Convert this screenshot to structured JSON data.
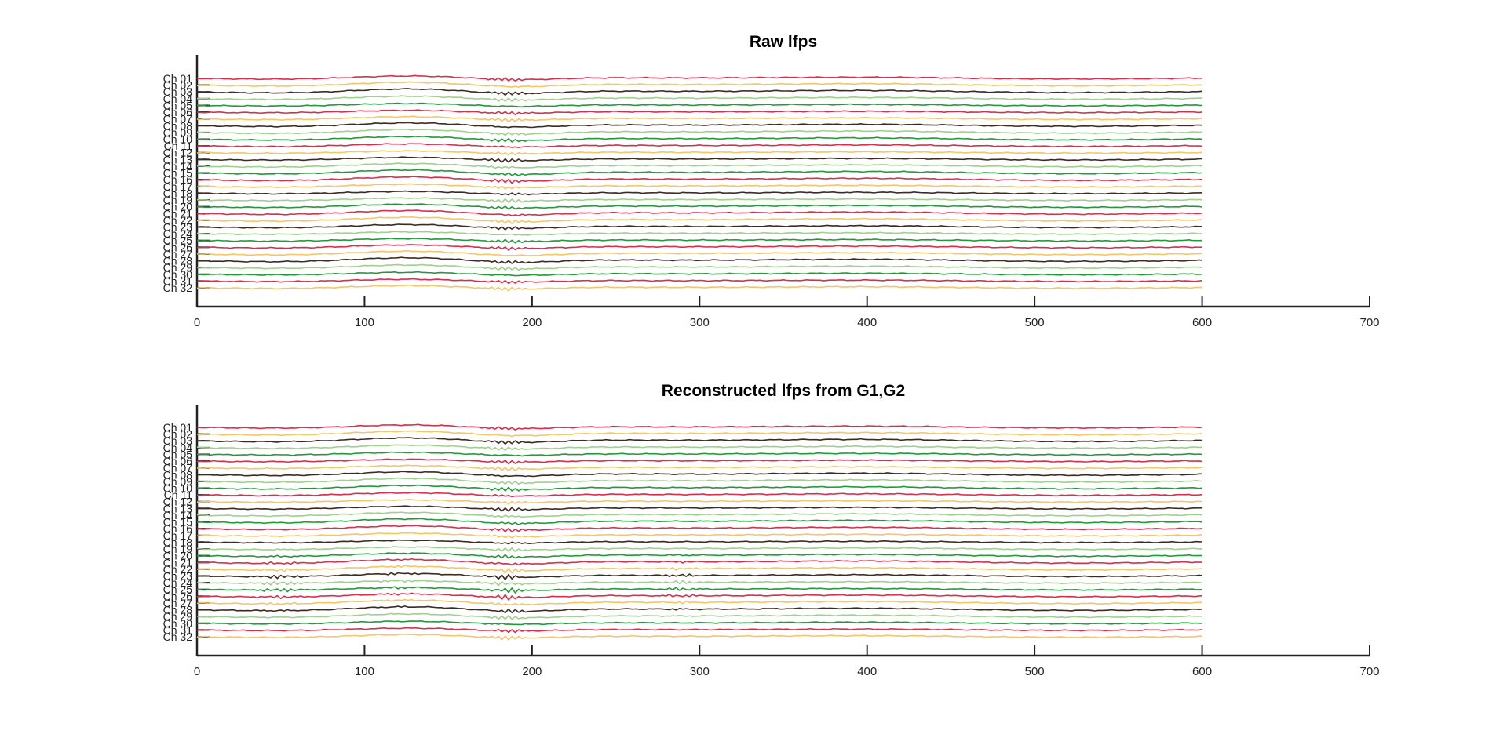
{
  "chart_data": [
    {
      "type": "line",
      "title": "Raw lfps",
      "xlabel": "",
      "ylabel": "",
      "xlim": [
        0,
        700
      ],
      "x_ticks": [
        "0",
        "100",
        "200",
        "300",
        "400",
        "500",
        "600",
        "700"
      ],
      "x_range_of_data": [
        0,
        600
      ],
      "grid": false,
      "legend": "none",
      "channel_labels": [
        "Ch 01",
        "Ch 02",
        "Ch 03",
        "Ch 04",
        "Ch 05",
        "Ch 06",
        "Ch 07",
        "Ch 08",
        "Ch 09",
        "Ch 10",
        "Ch 11",
        "Ch 12",
        "Ch 13",
        "Ch 14",
        "Ch 15",
        "Ch 16",
        "Ch 17",
        "Ch 18",
        "Ch 19",
        "Ch 20",
        "Ch 21",
        "Ch 22",
        "Ch 23",
        "Ch 24",
        "Ch 25",
        "Ch 26",
        "Ch 27",
        "Ch 28",
        "Ch 29",
        "Ch 30",
        "Ch 31",
        "Ch 32"
      ],
      "colors": [
        "#d6304e",
        "#f5c56a",
        "#3b2b22",
        "#9fd08e",
        "#239a3a"
      ]
    },
    {
      "type": "line",
      "title": "Reconstructed lfps from G1,G2",
      "xlabel": "",
      "ylabel": "",
      "xlim": [
        0,
        700
      ],
      "x_ticks": [
        "0",
        "100",
        "200",
        "300",
        "400",
        "500",
        "600",
        "700"
      ],
      "x_range_of_data": [
        0,
        600
      ],
      "grid": false,
      "legend": "none",
      "channel_labels": [
        "Ch 01",
        "Ch 02",
        "Ch 03",
        "Ch 04",
        "Ch 05",
        "Ch 06",
        "Ch 07",
        "Ch 08",
        "Ch 09",
        "Ch 10",
        "Ch 11",
        "Ch 12",
        "Ch 13",
        "Ch 14",
        "Ch 15",
        "Ch 16",
        "Ch 17",
        "Ch 18",
        "Ch 19",
        "Ch 20",
        "Ch 21",
        "Ch 22",
        "Ch 23",
        "Ch 24",
        "Ch 25",
        "Ch 26",
        "Ch 27",
        "Ch 28",
        "Ch 29",
        "Ch 30",
        "Ch 31",
        "Ch 32"
      ],
      "colors": [
        "#d6304e",
        "#f5c56a",
        "#3b2b22",
        "#9fd08e",
        "#239a3a"
      ]
    }
  ]
}
